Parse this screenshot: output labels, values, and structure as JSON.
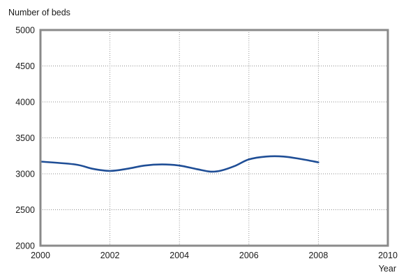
{
  "chart_data": {
    "type": "line",
    "title": "",
    "ylabel": "Number of beds",
    "xlabel": "Year",
    "xlim": [
      2000,
      2010
    ],
    "ylim": [
      2000,
      5000
    ],
    "x_ticks": [
      "2000",
      "2002",
      "2004",
      "2006",
      "2008",
      "2010"
    ],
    "y_ticks": [
      "2000",
      "2500",
      "3000",
      "3500",
      "4000",
      "4500",
      "5000"
    ],
    "grid": true,
    "legend": "none",
    "series": [
      {
        "color": "#1f4e96",
        "points": [
          {
            "x": 2000.0,
            "y": 3170
          },
          {
            "x": 2001.0,
            "y": 3130
          },
          {
            "x": 2001.5,
            "y": 3070
          },
          {
            "x": 2002.0,
            "y": 3040
          },
          {
            "x": 2002.5,
            "y": 3070
          },
          {
            "x": 2003.0,
            "y": 3115
          },
          {
            "x": 2003.5,
            "y": 3130
          },
          {
            "x": 2004.0,
            "y": 3115
          },
          {
            "x": 2004.5,
            "y": 3065
          },
          {
            "x": 2004.9,
            "y": 3030
          },
          {
            "x": 2005.2,
            "y": 3045
          },
          {
            "x": 2005.6,
            "y": 3110
          },
          {
            "x": 2006.0,
            "y": 3200
          },
          {
            "x": 2006.5,
            "y": 3240
          },
          {
            "x": 2007.0,
            "y": 3240
          },
          {
            "x": 2007.5,
            "y": 3205
          },
          {
            "x": 2008.0,
            "y": 3160
          }
        ]
      }
    ]
  }
}
